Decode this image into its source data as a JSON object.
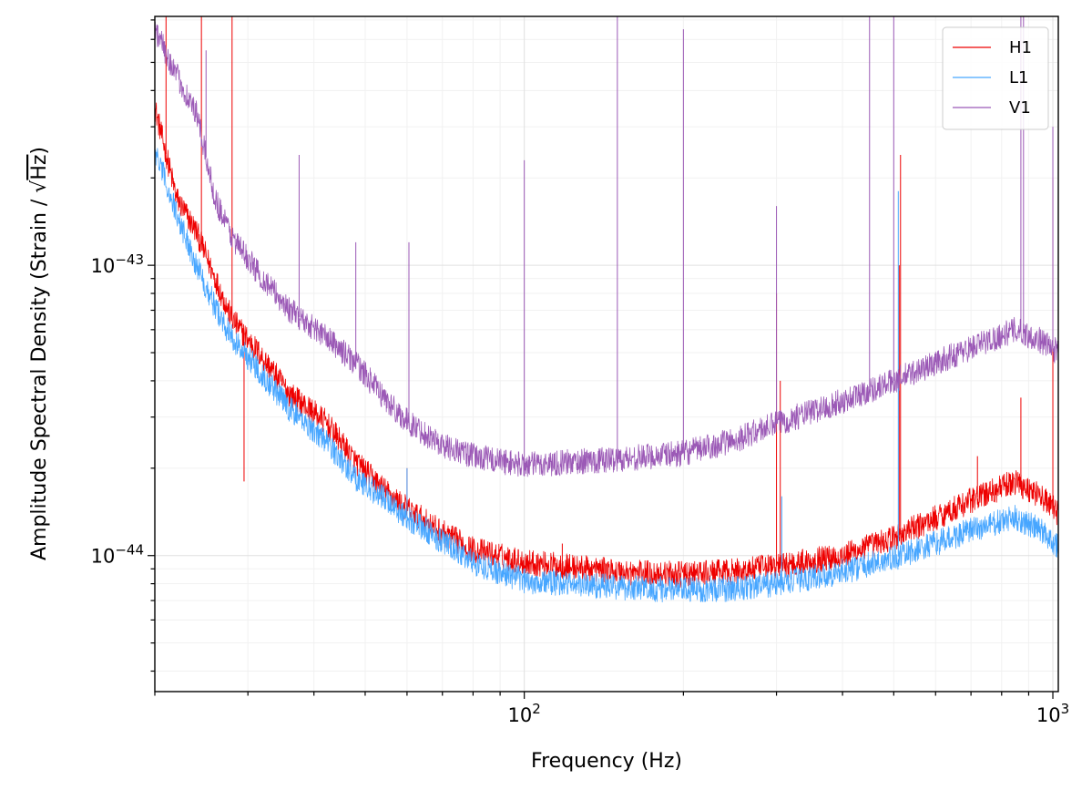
{
  "chart_data": {
    "type": "line",
    "xlabel": "Frequency (Hz)",
    "ylabel": "Amplitude Spectral Density (Strain / √Hz)",
    "ylabel_parts": {
      "prefix": "Amplitude Spectral Density (Strain / ",
      "radical": "√",
      "radicand": "Hz",
      "suffix": ")"
    },
    "xscale": "log",
    "yscale": "log",
    "xlim": [
      20,
      1024
    ],
    "ylim": [
      3.4e-45,
      7.2e-43
    ],
    "grid": true,
    "legend_position": "top-right",
    "x_ticks": [
      {
        "value": 100,
        "base": "10",
        "exp": "2"
      },
      {
        "value": 1000,
        "base": "10",
        "exp": "3"
      }
    ],
    "y_ticks": [
      {
        "value": 1e-44,
        "base": "10",
        "exp": "−44"
      },
      {
        "value": 1e-43,
        "base": "10",
        "exp": "−43"
      }
    ],
    "series": [
      {
        "name": "H1",
        "color": "#ee0000",
        "points": [
          [
            20,
            3.5e-43
          ],
          [
            22,
            1.7e-43
          ],
          [
            24,
            1.3e-43
          ],
          [
            26,
            9e-44
          ],
          [
            28,
            6.5e-44
          ],
          [
            32,
            4.8e-44
          ],
          [
            36,
            3.6e-44
          ],
          [
            42,
            2.9e-44
          ],
          [
            48,
            2.1e-44
          ],
          [
            55,
            1.65e-44
          ],
          [
            60,
            1.45e-44
          ],
          [
            70,
            1.2e-44
          ],
          [
            80,
            1.05e-44
          ],
          [
            100,
            9.5e-45
          ],
          [
            150,
            8.8e-45
          ],
          [
            200,
            8.6e-45
          ],
          [
            250,
            8.8e-45
          ],
          [
            300,
            9.2e-45
          ],
          [
            400,
            1e-44
          ],
          [
            500,
            1.15e-44
          ],
          [
            600,
            1.35e-44
          ],
          [
            700,
            1.55e-44
          ],
          [
            850,
            1.8e-44
          ],
          [
            950,
            1.6e-44
          ],
          [
            1024,
            1.4e-44
          ]
        ],
        "lines": [
          [
            21,
            9e-43
          ],
          [
            24.5,
            9e-43
          ],
          [
            28,
            9e-43
          ],
          [
            29.5,
            1.8e-44
          ],
          [
            41,
            3e-44
          ],
          [
            46,
            2.2e-44
          ],
          [
            60,
            2e-44
          ],
          [
            118,
            1.1e-44
          ],
          [
            300,
            8e-44
          ],
          [
            305,
            4e-44
          ],
          [
            512,
            1e-43
          ],
          [
            515,
            2.4e-43
          ],
          [
            720,
            2.2e-44
          ],
          [
            870,
            3.5e-44
          ],
          [
            1000,
            2e-43
          ]
        ]
      },
      {
        "name": "L1",
        "color": "#47a6ff",
        "points": [
          [
            20,
            2.5e-43
          ],
          [
            22,
            1.5e-43
          ],
          [
            24,
            1e-43
          ],
          [
            26,
            7.2e-44
          ],
          [
            28,
            5.6e-44
          ],
          [
            32,
            4.2e-44
          ],
          [
            36,
            3.2e-44
          ],
          [
            42,
            2.5e-44
          ],
          [
            48,
            1.85e-44
          ],
          [
            55,
            1.55e-44
          ],
          [
            60,
            1.35e-44
          ],
          [
            70,
            1.12e-44
          ],
          [
            80,
            9.5e-45
          ],
          [
            100,
            8.2e-45
          ],
          [
            150,
            7.8e-45
          ],
          [
            200,
            7.6e-45
          ],
          [
            250,
            7.7e-45
          ],
          [
            300,
            8e-45
          ],
          [
            400,
            8.8e-45
          ],
          [
            500,
            9.8e-45
          ],
          [
            600,
            1.1e-44
          ],
          [
            700,
            1.22e-44
          ],
          [
            850,
            1.35e-44
          ],
          [
            950,
            1.22e-44
          ],
          [
            1024,
            1.08e-44
          ]
        ],
        "lines": [
          [
            60,
            2e-44
          ],
          [
            307,
            1.6e-44
          ],
          [
            510,
            1.8e-43
          ]
        ]
      },
      {
        "name": "V1",
        "color": "#9b59b6",
        "points": [
          [
            20,
            6.5e-43
          ],
          [
            22,
            4.5e-43
          ],
          [
            24,
            3.3e-43
          ],
          [
            26,
            1.7e-43
          ],
          [
            28,
            1.25e-43
          ],
          [
            32,
            9e-44
          ],
          [
            36,
            7e-44
          ],
          [
            42,
            5.7e-44
          ],
          [
            48,
            4.6e-44
          ],
          [
            55,
            3.4e-44
          ],
          [
            60,
            2.9e-44
          ],
          [
            70,
            2.4e-44
          ],
          [
            80,
            2.2e-44
          ],
          [
            100,
            2.05e-44
          ],
          [
            150,
            2.15e-44
          ],
          [
            200,
            2.25e-44
          ],
          [
            250,
            2.5e-44
          ],
          [
            300,
            2.85e-44
          ],
          [
            400,
            3.4e-44
          ],
          [
            500,
            4e-44
          ],
          [
            600,
            4.6e-44
          ],
          [
            700,
            5.2e-44
          ],
          [
            850,
            6e-44
          ],
          [
            950,
            5.5e-44
          ],
          [
            1024,
            5e-44
          ]
        ],
        "lines": [
          [
            25,
            5.5e-43
          ],
          [
            37.5,
            2.4e-43
          ],
          [
            48,
            1.2e-43
          ],
          [
            60.5,
            1.2e-43
          ],
          [
            100,
            2.3e-43
          ],
          [
            150,
            7.2e-43
          ],
          [
            200,
            6.5e-43
          ],
          [
            300,
            1.6e-43
          ],
          [
            450,
            7.2e-43
          ],
          [
            500,
            7.2e-43
          ],
          [
            870,
            7.2e-43
          ],
          [
            880,
            7.2e-43
          ],
          [
            1000,
            3e-43
          ]
        ]
      }
    ]
  }
}
